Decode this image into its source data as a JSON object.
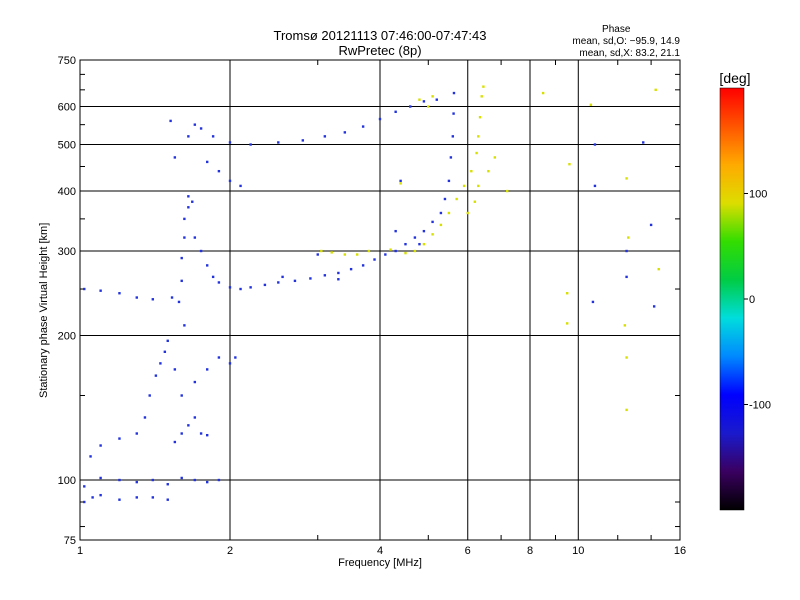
{
  "header": {
    "title": "Tromsø 20121113 07:46:00-07:47:43",
    "subtitle": "RwPretec (8p)"
  },
  "phase_stats": {
    "heading": "Phase",
    "line_o": "mean, sd,O: −95.9, 14.9",
    "line_x": "mean, sd,X:  83.2, 21.1"
  },
  "colorbar": {
    "label": "[deg]",
    "ticks": [
      100,
      0,
      -100
    ],
    "range": [
      -200,
      200
    ],
    "colors": [
      "#000000",
      "#3a0060",
      "#1a1acc",
      "#0000ff",
      "#0088ff",
      "#00dddd",
      "#00cc44",
      "#33dd00",
      "#dddd00",
      "#ffaa00",
      "#ff5500",
      "#ff0000"
    ]
  },
  "chart_data": {
    "type": "scatter",
    "title": "Tromsø 20121113 07:46:00-07:47:43",
    "subtitle": "RwPretec (8p)",
    "xlabel": "Frequency [MHz]",
    "ylabel": "Stationary phase Virtual Height [km]",
    "xscale": "log",
    "yscale": "log",
    "xlim": [
      1,
      16
    ],
    "ylim": [
      75,
      750
    ],
    "xticks": [
      1,
      2,
      4,
      6,
      8,
      10,
      16
    ],
    "yticks": [
      75,
      100,
      200,
      300,
      400,
      500,
      600,
      750
    ],
    "color_scale": "Phase [deg]",
    "series": [
      {
        "name": "O",
        "points": [
          [
            1.02,
            90
          ],
          [
            1.06,
            92
          ],
          [
            1.1,
            93
          ],
          [
            1.2,
            91
          ],
          [
            1.3,
            92
          ],
          [
            1.4,
            92
          ],
          [
            1.5,
            91
          ],
          [
            1.02,
            97
          ],
          [
            1.1,
            101
          ],
          [
            1.2,
            100
          ],
          [
            1.3,
            99
          ],
          [
            1.4,
            100
          ],
          [
            1.5,
            98
          ],
          [
            1.6,
            101
          ],
          [
            1.7,
            100
          ],
          [
            1.8,
            99
          ],
          [
            1.9,
            100
          ],
          [
            1.05,
            112
          ],
          [
            1.1,
            118
          ],
          [
            1.2,
            122
          ],
          [
            1.3,
            125
          ],
          [
            1.35,
            135
          ],
          [
            1.38,
            150
          ],
          [
            1.42,
            165
          ],
          [
            1.45,
            175
          ],
          [
            1.48,
            185
          ],
          [
            1.5,
            195
          ],
          [
            1.55,
            120
          ],
          [
            1.6,
            125
          ],
          [
            1.65,
            130
          ],
          [
            1.7,
            135
          ],
          [
            1.75,
            125
          ],
          [
            1.8,
            124
          ],
          [
            1.6,
            150
          ],
          [
            1.7,
            160
          ],
          [
            1.8,
            170
          ],
          [
            1.9,
            180
          ],
          [
            2.0,
            175
          ],
          [
            2.05,
            180
          ],
          [
            1.55,
            170
          ],
          [
            1.62,
            210
          ],
          [
            1.58,
            235
          ],
          [
            1.6,
            260
          ],
          [
            1.6,
            290
          ],
          [
            1.62,
            320
          ],
          [
            1.62,
            350
          ],
          [
            1.65,
            370
          ],
          [
            1.65,
            390
          ],
          [
            1.68,
            380
          ],
          [
            1.7,
            320
          ],
          [
            1.75,
            300
          ],
          [
            1.8,
            280
          ],
          [
            1.85,
            265
          ],
          [
            1.9,
            258
          ],
          [
            2.0,
            252
          ],
          [
            2.1,
            250
          ],
          [
            2.2,
            252
          ],
          [
            2.35,
            255
          ],
          [
            2.5,
            258
          ],
          [
            2.7,
            260
          ],
          [
            2.9,
            263
          ],
          [
            3.1,
            267
          ],
          [
            3.3,
            270
          ],
          [
            3.5,
            275
          ],
          [
            3.7,
            280
          ],
          [
            3.9,
            288
          ],
          [
            4.1,
            295
          ],
          [
            4.3,
            300
          ],
          [
            4.5,
            310
          ],
          [
            4.7,
            320
          ],
          [
            4.9,
            330
          ],
          [
            5.1,
            345
          ],
          [
            5.3,
            360
          ],
          [
            5.4,
            385
          ],
          [
            5.5,
            420
          ],
          [
            5.55,
            470
          ],
          [
            5.6,
            520
          ],
          [
            5.62,
            580
          ],
          [
            5.63,
            640
          ],
          [
            1.65,
            520
          ],
          [
            1.7,
            550
          ],
          [
            1.75,
            540
          ],
          [
            1.85,
            520
          ],
          [
            2.0,
            505
          ],
          [
            2.2,
            500
          ],
          [
            2.5,
            505
          ],
          [
            2.8,
            510
          ],
          [
            3.1,
            520
          ],
          [
            3.4,
            530
          ],
          [
            3.7,
            545
          ],
          [
            4.0,
            565
          ],
          [
            4.3,
            585
          ],
          [
            4.6,
            600
          ],
          [
            4.9,
            615
          ],
          [
            5.2,
            620
          ],
          [
            1.8,
            460
          ],
          [
            1.9,
            440
          ],
          [
            2.0,
            420
          ],
          [
            2.1,
            410
          ],
          [
            1.02,
            250
          ],
          [
            1.1,
            248
          ],
          [
            1.2,
            245
          ],
          [
            1.3,
            240
          ],
          [
            1.4,
            238
          ],
          [
            1.52,
            560
          ],
          [
            1.55,
            470
          ],
          [
            1.53,
            240
          ],
          [
            2.55,
            265
          ],
          [
            3.3,
            262
          ],
          [
            3.0,
            295
          ],
          [
            4.3,
            330
          ],
          [
            4.8,
            310
          ],
          [
            4.4,
            420
          ],
          [
            10.8,
            500
          ],
          [
            10.8,
            410
          ],
          [
            12.5,
            300
          ],
          [
            12.5,
            265
          ],
          [
            14.0,
            340
          ],
          [
            14.2,
            230
          ],
          [
            13.5,
            505
          ],
          [
            10.7,
            235
          ]
        ]
      },
      {
        "name": "X",
        "points": [
          [
            3.05,
            300
          ],
          [
            3.2,
            298
          ],
          [
            3.4,
            295
          ],
          [
            3.6,
            295
          ],
          [
            3.8,
            300
          ],
          [
            4.2,
            302
          ],
          [
            4.5,
            297
          ],
          [
            4.7,
            300
          ],
          [
            4.9,
            310
          ],
          [
            5.1,
            325
          ],
          [
            5.3,
            340
          ],
          [
            5.5,
            360
          ],
          [
            5.7,
            385
          ],
          [
            5.9,
            410
          ],
          [
            6.1,
            440
          ],
          [
            6.25,
            480
          ],
          [
            6.3,
            520
          ],
          [
            6.35,
            570
          ],
          [
            6.4,
            630
          ],
          [
            6.45,
            660
          ],
          [
            6.0,
            360
          ],
          [
            6.2,
            380
          ],
          [
            6.3,
            410
          ],
          [
            6.6,
            440
          ],
          [
            6.8,
            470
          ],
          [
            7.2,
            400
          ],
          [
            4.8,
            620
          ],
          [
            5.0,
            600
          ],
          [
            5.1,
            630
          ],
          [
            8.5,
            640
          ],
          [
            9.6,
            455
          ],
          [
            10.6,
            605
          ],
          [
            12.5,
            425
          ],
          [
            12.6,
            320
          ],
          [
            12.5,
            180
          ],
          [
            12.5,
            140
          ],
          [
            14.5,
            275
          ],
          [
            14.3,
            650
          ],
          [
            4.4,
            415
          ],
          [
            9.5,
            245
          ],
          [
            9.5,
            212
          ],
          [
            12.4,
            210
          ]
        ]
      }
    ]
  }
}
